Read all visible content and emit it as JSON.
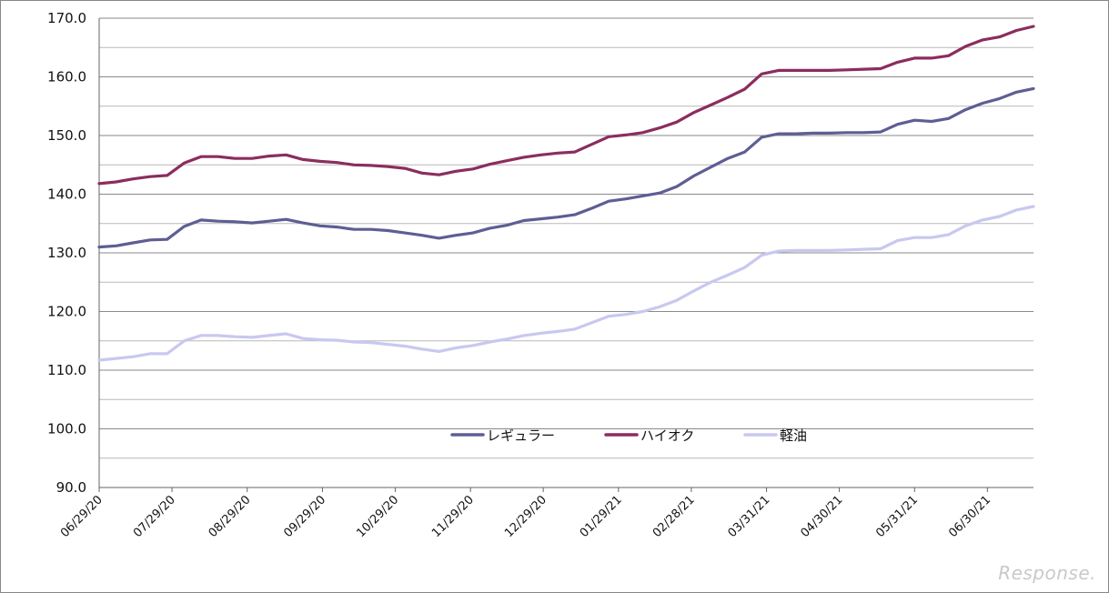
{
  "watermark": "Response.",
  "chart_data": {
    "type": "line",
    "ylim": [
      90,
      170
    ],
    "yticks": [
      "90.0",
      "100.0",
      "110.0",
      "120.0",
      "130.0",
      "140.0",
      "150.0",
      "160.0",
      "170.0"
    ],
    "x_tick_labels": [
      "06/29/20",
      "07/29/20",
      "08/29/20",
      "09/29/20",
      "10/29/20",
      "11/29/20",
      "12/29/20",
      "01/29/21",
      "02/28/21",
      "03/31/21",
      "04/30/21",
      "05/31/21",
      "06/30/21"
    ],
    "x": [
      "2020-06-29",
      "2020-07-06",
      "2020-07-13",
      "2020-07-20",
      "2020-07-27",
      "2020-08-03",
      "2020-08-10",
      "2020-08-17",
      "2020-08-24",
      "2020-08-31",
      "2020-09-07",
      "2020-09-14",
      "2020-09-21",
      "2020-09-28",
      "2020-10-05",
      "2020-10-12",
      "2020-10-19",
      "2020-10-26",
      "2020-11-02",
      "2020-11-09",
      "2020-11-16",
      "2020-11-23",
      "2020-11-30",
      "2020-12-07",
      "2020-12-14",
      "2020-12-21",
      "2020-12-28",
      "2021-01-04",
      "2021-01-11",
      "2021-01-18",
      "2021-01-25",
      "2021-02-01",
      "2021-02-08",
      "2021-02-15",
      "2021-02-22",
      "2021-03-01",
      "2021-03-08",
      "2021-03-15",
      "2021-03-22",
      "2021-03-29",
      "2021-04-05",
      "2021-04-12",
      "2021-04-19",
      "2021-04-26",
      "2021-05-03",
      "2021-05-10",
      "2021-05-17",
      "2021-05-24",
      "2021-05-31",
      "2021-06-07",
      "2021-06-14",
      "2021-06-21",
      "2021-06-28",
      "2021-07-05",
      "2021-07-12",
      "2021-07-19"
    ],
    "series": [
      {
        "name": "レギュラー",
        "color": "#5e5e94",
        "values": [
          131.0,
          131.2,
          131.7,
          132.2,
          132.3,
          134.5,
          135.6,
          135.4,
          135.3,
          135.1,
          135.4,
          135.7,
          135.1,
          134.6,
          134.4,
          134.0,
          134.0,
          133.8,
          133.4,
          133.0,
          132.5,
          133.0,
          133.4,
          134.2,
          134.7,
          135.5,
          135.8,
          136.1,
          136.5,
          137.6,
          138.8,
          139.2,
          139.7,
          140.2,
          141.3,
          143.1,
          144.6,
          146.1,
          147.2,
          149.7,
          150.3,
          150.3,
          150.4,
          150.4,
          150.5,
          150.5,
          150.6,
          151.9,
          152.6,
          152.4,
          152.9,
          154.4,
          155.5,
          156.3,
          157.4,
          158.0
        ]
      },
      {
        "name": "ハイオク",
        "color": "#8b2d5e",
        "values": [
          141.8,
          142.1,
          142.6,
          143.0,
          143.2,
          145.3,
          146.4,
          146.4,
          146.1,
          146.1,
          146.5,
          146.7,
          145.9,
          145.6,
          145.4,
          145.0,
          144.9,
          144.7,
          144.4,
          143.6,
          143.3,
          143.9,
          144.3,
          145.1,
          145.7,
          146.3,
          146.7,
          147.0,
          147.2,
          148.5,
          149.8,
          150.1,
          150.5,
          151.3,
          152.3,
          153.9,
          155.2,
          156.5,
          157.9,
          160.5,
          161.1,
          161.1,
          161.1,
          161.1,
          161.2,
          161.3,
          161.4,
          162.5,
          163.2,
          163.2,
          163.6,
          165.2,
          166.3,
          166.8,
          167.9,
          168.6
        ]
      },
      {
        "name": "軽油",
        "color": "#c8c8f0",
        "values": [
          111.7,
          112.0,
          112.3,
          112.8,
          112.8,
          115.0,
          115.9,
          115.9,
          115.7,
          115.6,
          115.9,
          116.2,
          115.4,
          115.2,
          115.1,
          114.8,
          114.7,
          114.4,
          114.1,
          113.6,
          113.2,
          113.8,
          114.2,
          114.8,
          115.3,
          115.9,
          116.3,
          116.6,
          117.0,
          118.1,
          119.2,
          119.5,
          120.0,
          120.8,
          121.9,
          123.5,
          125.0,
          126.2,
          127.5,
          129.6,
          130.3,
          130.4,
          130.4,
          130.4,
          130.5,
          130.6,
          130.7,
          132.1,
          132.6,
          132.6,
          133.1,
          134.6,
          135.6,
          136.2,
          137.3,
          137.9
        ]
      }
    ],
    "grid": "horizontal",
    "legend_position": "inside-bottom-center"
  }
}
